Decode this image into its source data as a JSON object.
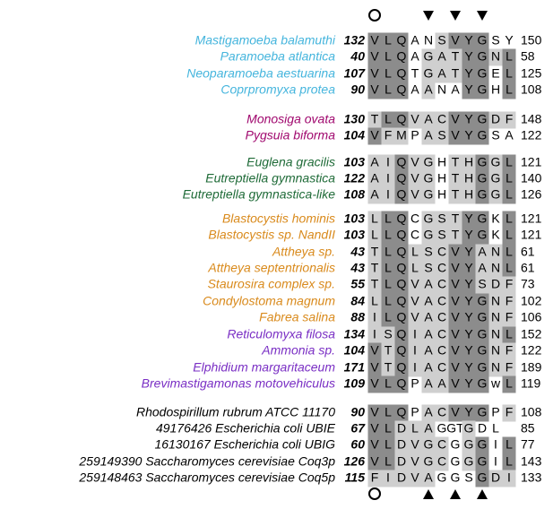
{
  "groups": [
    {
      "color": "#45b5dd",
      "rows": [
        {
          "name": "Mastigamoeba balamuthi",
          "start": 132,
          "residues": [
            "V",
            "L",
            "Q",
            "A",
            "N",
            "S",
            "V",
            "Y",
            "G",
            "S",
            "Y"
          ],
          "end": 150
        },
        {
          "name": "Paramoeba atlantica",
          "start": 40,
          "residues": [
            "V",
            "L",
            "Q",
            "A",
            "G",
            "A",
            "T",
            "Y",
            "G",
            "N",
            "L"
          ],
          "end": 58
        },
        {
          "name": "Neoparamoeba aestuarina",
          "start": 107,
          "residues": [
            "V",
            "L",
            "Q",
            "T",
            "G",
            "A",
            "T",
            "Y",
            "G",
            "E",
            "L"
          ],
          "end": 125
        },
        {
          "name": "Coprpromyxa protea",
          "start": 90,
          "residues": [
            "V",
            "L",
            "Q",
            "A",
            "A",
            "N",
            "A",
            "Y",
            "G",
            "H",
            "L"
          ],
          "end": 108
        }
      ]
    },
    {
      "color": "#a0086e",
      "rows": [
        {
          "name": "Monosiga ovata",
          "start": 130,
          "residues": [
            "T",
            "L",
            "Q",
            "V",
            "A",
            "C",
            "V",
            "Y",
            "G",
            "D",
            "F"
          ],
          "end": 148
        },
        {
          "name": "Pygsuia biforma",
          "start": 104,
          "residues": [
            "V",
            "F",
            "M",
            "P",
            "A",
            "S",
            "V",
            "Y",
            "G",
            "S",
            "A"
          ],
          "end": 122
        }
      ]
    },
    {
      "color": "#1f6b38",
      "rows": [
        {
          "name": "Euglena gracilis",
          "start": 103,
          "residues": [
            "A",
            "I",
            "Q",
            "V",
            "G",
            "H",
            "T",
            "H",
            "G",
            "G",
            "L"
          ],
          "end": 121
        },
        {
          "name": "Eutreptiella gymnastica",
          "start": 122,
          "residues": [
            "A",
            "I",
            "Q",
            "V",
            "G",
            "H",
            "T",
            "H",
            "G",
            "G",
            "L"
          ],
          "end": 140
        },
        {
          "name": "Eutreptiella gymnastica-like",
          "start": 108,
          "residues": [
            "A",
            "I",
            "Q",
            "V",
            "G",
            "H",
            "T",
            "H",
            "G",
            "G",
            "L"
          ],
          "end": 126
        }
      ]
    },
    {
      "color": "#d98a1c",
      "rows": [
        {
          "name": "Blastocystis hominis",
          "start": 103,
          "residues": [
            "L",
            "L",
            "Q",
            "C",
            "G",
            "S",
            "T",
            "Y",
            "G",
            "K",
            "L"
          ],
          "end": 121
        },
        {
          "name": "Blastocystis sp. NandII",
          "start": 103,
          "residues": [
            "L",
            "L",
            "Q",
            "C",
            "G",
            "S",
            "T",
            "Y",
            "G",
            "K",
            "L"
          ],
          "end": 121
        },
        {
          "name": "Attheya sp.",
          "start": 43,
          "residues": [
            "T",
            "L",
            "Q",
            "L",
            "S",
            "C",
            "V",
            "Y",
            "A",
            "N",
            "L"
          ],
          "end": 61
        },
        {
          "name": "Attheya septentrionalis",
          "start": 43,
          "residues": [
            "T",
            "L",
            "Q",
            "L",
            "S",
            "C",
            "V",
            "Y",
            "A",
            "N",
            "L"
          ],
          "end": 61
        },
        {
          "name": "Staurosira complex sp.",
          "start": 55,
          "residues": [
            "T",
            "L",
            "Q",
            "V",
            "A",
            "C",
            "V",
            "Y",
            "S",
            "D",
            "F"
          ],
          "end": 73
        },
        {
          "name": "Condylostoma magnum",
          "start": 84,
          "residues": [
            "L",
            "L",
            "Q",
            "V",
            "A",
            "C",
            "V",
            "Y",
            "G",
            "N",
            "F"
          ],
          "end": 102
        },
        {
          "name": "Fabrea salina",
          "start": 88,
          "residues": [
            "I",
            "L",
            "Q",
            "V",
            "A",
            "C",
            "V",
            "Y",
            "G",
            "N",
            "F"
          ],
          "end": 106
        }
      ]
    },
    {
      "color": "#7a2fc4",
      "rows": [
        {
          "name": "Reticulomyxa filosa",
          "start": 134,
          "residues": [
            "I",
            "S",
            "Q",
            "I",
            "A",
            "C",
            "V",
            "Y",
            "G",
            "N",
            "L"
          ],
          "end": 152
        },
        {
          "name": "Ammonia sp.",
          "start": 104,
          "residues": [
            "V",
            "T",
            "Q",
            "I",
            "A",
            "C",
            "V",
            "Y",
            "G",
            "N",
            "F"
          ],
          "end": 122
        },
        {
          "name": "Elphidium margaritaceum",
          "start": 171,
          "residues": [
            "V",
            "T",
            "Q",
            "I",
            "A",
            "C",
            "V",
            "Y",
            "G",
            "N",
            "F"
          ],
          "end": 189
        },
        {
          "name": "Brevimastigamonas motovehiculus",
          "start": 109,
          "residues": [
            "V",
            "L",
            "Q",
            "P",
            "A",
            "A",
            "V",
            "Y",
            "G",
            "w",
            "L"
          ],
          "end": 119
        }
      ]
    },
    {
      "color": "#000000",
      "rows": [
        {
          "name": "Rhodospirillum rubrum ATCC 11170",
          "start": 90,
          "residues": [
            "V",
            "L",
            "Q",
            "P",
            "A",
            "C",
            "V",
            "Y",
            "G",
            "P",
            "F"
          ],
          "end": 108
        },
        {
          "name": "49176426 Escherichia coli UBIE",
          "start": 67,
          "residues": [
            "V",
            "L",
            "D",
            "L",
            "A",
            "G",
            "GT",
            "G",
            "D",
            "L",
            ""
          ],
          "end": 85
        },
        {
          "name": "16130167 Escherichia coli UBIG",
          "start": 60,
          "residues": [
            "V",
            "L",
            "D",
            "V",
            "G",
            "C",
            "G",
            "G",
            "G",
            "I",
            "L"
          ],
          "end": 77
        },
        {
          "name": "259149390 Saccharomyces cerevisiae Coq3p",
          "start": 126,
          "residues": [
            "V",
            "L",
            "D",
            "V",
            "G",
            "C",
            "G",
            "G",
            "G",
            "I",
            "L"
          ],
          "end": 143
        },
        {
          "name": "259148463 Saccharomyces cerevisiae Coq5p",
          "start": 115,
          "residues": [
            "F",
            "I",
            "D",
            "V",
            "A",
            "G",
            "G",
            "S",
            "G",
            "D",
            "I"
          ],
          "end": 133
        }
      ]
    }
  ]
}
